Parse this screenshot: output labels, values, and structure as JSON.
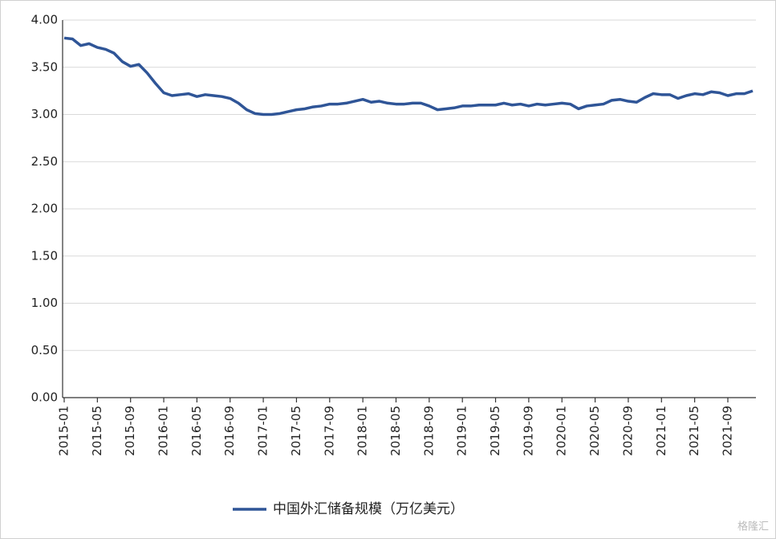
{
  "chart_data": {
    "type": "line",
    "categories": [
      "2015-01",
      null,
      null,
      null,
      "2015-05",
      null,
      null,
      null,
      "2015-09",
      null,
      null,
      null,
      "2016-01",
      null,
      null,
      null,
      "2016-05",
      null,
      null,
      null,
      "2016-09",
      null,
      null,
      null,
      "2017-01",
      null,
      null,
      null,
      "2017-05",
      null,
      null,
      null,
      "2017-09",
      null,
      null,
      null,
      "2018-01",
      null,
      null,
      null,
      "2018-05",
      null,
      null,
      null,
      "2018-09",
      null,
      null,
      null,
      "2019-01",
      null,
      null,
      null,
      "2019-05",
      null,
      null,
      null,
      "2019-09",
      null,
      null,
      null,
      "2020-01",
      null,
      null,
      null,
      "2020-05",
      null,
      null,
      null,
      "2020-09",
      null,
      null,
      null,
      "2021-01",
      null,
      null,
      null,
      "2021-05",
      null,
      null,
      null,
      "2021-09",
      null,
      null,
      null
    ],
    "series": [
      {
        "name": "中国外汇储备规模（万亿美元）",
        "color": "#2f5597",
        "values": [
          3.81,
          3.8,
          3.73,
          3.75,
          3.71,
          3.69,
          3.65,
          3.56,
          3.51,
          3.53,
          3.44,
          3.33,
          3.23,
          3.2,
          3.21,
          3.22,
          3.19,
          3.21,
          3.2,
          3.19,
          3.17,
          3.12,
          3.05,
          3.01,
          3.0,
          3.0,
          3.01,
          3.03,
          3.05,
          3.06,
          3.08,
          3.09,
          3.11,
          3.11,
          3.12,
          3.14,
          3.16,
          3.13,
          3.14,
          3.12,
          3.11,
          3.11,
          3.12,
          3.12,
          3.09,
          3.05,
          3.06,
          3.07,
          3.09,
          3.09,
          3.1,
          3.1,
          3.1,
          3.12,
          3.1,
          3.11,
          3.09,
          3.11,
          3.1,
          3.11,
          3.12,
          3.11,
          3.06,
          3.09,
          3.1,
          3.11,
          3.15,
          3.16,
          3.14,
          3.13,
          3.18,
          3.22,
          3.21,
          3.21,
          3.17,
          3.2,
          3.22,
          3.21,
          3.24,
          3.23,
          3.2,
          3.22,
          3.22,
          3.25
        ]
      }
    ],
    "ylim": [
      0,
      4
    ],
    "yticks": [
      {
        "value": 0,
        "label": "0.00"
      },
      {
        "value": 0.5,
        "label": "0.50"
      },
      {
        "value": 1,
        "label": "1.00"
      },
      {
        "value": 1.5,
        "label": "1.50"
      },
      {
        "value": 2,
        "label": "2.00"
      },
      {
        "value": 2.5,
        "label": "2.50"
      },
      {
        "value": 3,
        "label": "3.00"
      },
      {
        "value": 3.5,
        "label": "3.50"
      },
      {
        "value": 4,
        "label": "4.00"
      }
    ],
    "grid": true,
    "legend": "bottom",
    "watermark": "格隆汇"
  }
}
